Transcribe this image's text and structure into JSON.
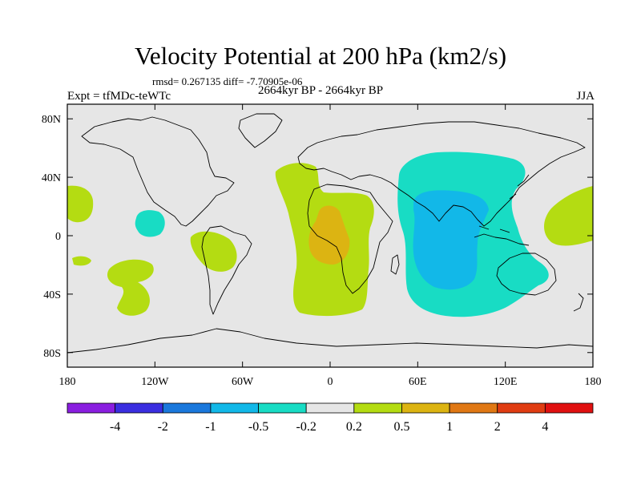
{
  "header": {
    "title": "Velocity Potential at 200 hPa (km2/s)",
    "stats": "rmsd= 0.267135 diff= -7.70905e-06",
    "left_label": "Expt = tfMDc-teWTc",
    "center_label": "2664kyr BP - 2664kyr BP",
    "right_label": "JJA"
  },
  "chart_data": {
    "type": "heatmap",
    "title": "Velocity Potential at 200 hPa (km2/s)",
    "subtitle": "2664kyr BP - 2664kyr BP",
    "projection": "cylindrical equidistant",
    "xlim": [
      -180,
      180
    ],
    "ylim": [
      -90,
      90
    ],
    "x_ticks": [
      {
        "value": -180,
        "label": "180"
      },
      {
        "value": -120,
        "label": "120W"
      },
      {
        "value": -60,
        "label": "60W"
      },
      {
        "value": 0,
        "label": "0"
      },
      {
        "value": 60,
        "label": "60E"
      },
      {
        "value": 120,
        "label": "120E"
      },
      {
        "value": 180,
        "label": "180"
      }
    ],
    "y_ticks": [
      {
        "value": 80,
        "label": "80N"
      },
      {
        "value": 40,
        "label": "40N"
      },
      {
        "value": 0,
        "label": "0"
      },
      {
        "value": -40,
        "label": "40S"
      },
      {
        "value": -80,
        "label": "80S"
      }
    ],
    "colorbar": {
      "levels": [
        "-4",
        "-2",
        "-1",
        "-0.5",
        "-0.2",
        "0.2",
        "0.5",
        "1",
        "2",
        "4"
      ],
      "colors": [
        "#8a1ee0",
        "#3a2ee0",
        "#1a78dc",
        "#12b8e8",
        "#18dcc4",
        "#e6e6e6",
        "#b4dc12",
        "#dcb412",
        "#e07814",
        "#e03c12",
        "#e01010"
      ]
    },
    "background_color": "#e6e6e6",
    "regions": [
      {
        "name": "North Pacific east of dateline",
        "level": "0.2 to 0.5",
        "color": "#b4dc12"
      },
      {
        "name": "Northeast Pacific cell",
        "level": "-0.5 to -0.2",
        "color": "#18dcc4"
      },
      {
        "name": "Equatorial Pacific small cell",
        "level": "0.2 to 0.5",
        "color": "#b4dc12"
      },
      {
        "name": "South Pacific patches",
        "level": "0.2 to 0.5",
        "color": "#b4dc12"
      },
      {
        "name": "Atlantic and Africa band",
        "level": "0.2 to 0.5",
        "color": "#b4dc12"
      },
      {
        "name": "Central Africa core",
        "level": "0.5 to 1",
        "color": "#dcb412"
      },
      {
        "name": "Indian Ocean and Asia",
        "level": "-0.5 to -0.2",
        "color": "#18dcc4"
      },
      {
        "name": "Indian Ocean core",
        "level": "-1 to -0.5",
        "color": "#12b8e8"
      },
      {
        "name": "Western Pacific east of Philippines",
        "level": "0.2 to 0.5",
        "color": "#b4dc12"
      }
    ]
  }
}
